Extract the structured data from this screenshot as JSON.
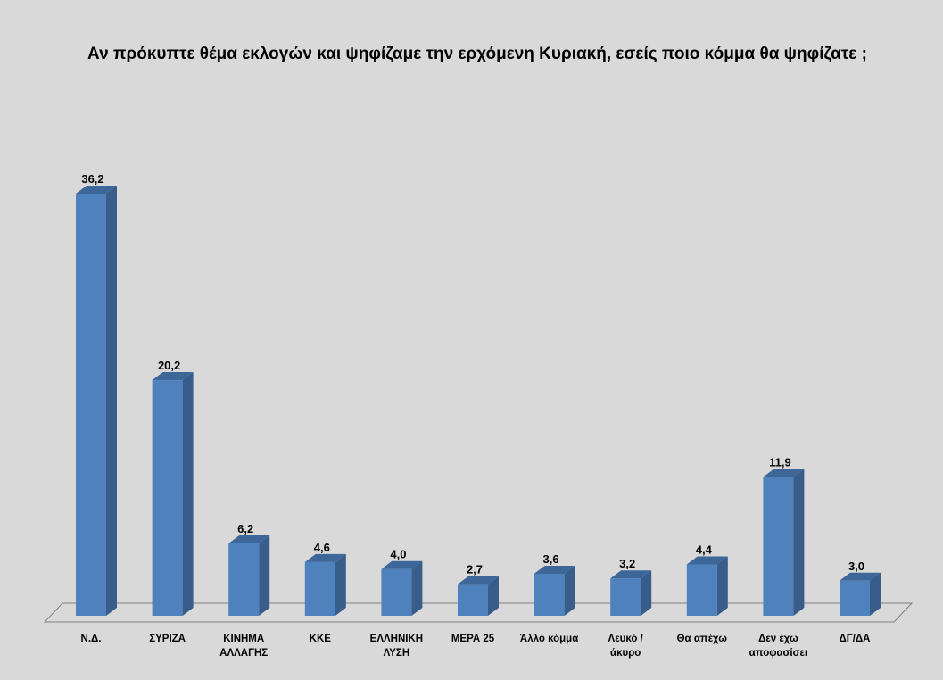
{
  "colors": {
    "background": "#d9d9d9",
    "bar_front": "#4f81bd",
    "bar_side": "#385d8a",
    "bar_top": "#3d6699",
    "floor_line": "#7f7f7f"
  },
  "chart_data": {
    "type": "bar",
    "title": "Αν πρόκυπτε θέμα εκλογών και ψηφίζαμε την ερχόμενη Κυριακή, εσείς ποιο κόμμα θα ψηφίζατε ;",
    "xlabel": "",
    "ylabel": "",
    "style": "3d-column",
    "grid": false,
    "legend": "none",
    "categories": [
      "Ν.Δ.",
      "ΣΥΡΙΖΑ",
      "ΚΙΝΗΜΑ ΑΛΛΑΓΗΣ",
      "ΚΚΕ",
      "ΕΛΛΗΝΙΚΗ ΛΥΣΗ",
      "ΜΕΡΑ 25",
      "Άλλο κόμμα",
      "Λευκό / άκυρο",
      "Θα απέχω",
      "Δεν έχω αποφασίσει",
      "ΔΓ/ΔΑ"
    ],
    "category_display": [
      "Ν.Δ.",
      "ΣΥΡΙΖΑ",
      "ΚΙΝΗΜΑ\nΑΛΛΑΓΗΣ",
      "ΚΚΕ",
      "ΕΛΛΗΝΙΚΗ\nΛΥΣΗ",
      "ΜΕΡΑ 25",
      "Άλλο κόμμα",
      "Λευκό /\nάκυρο",
      "Θα απέχω",
      "Δεν έχω\nαποφασίσει",
      "ΔΓ/ΔΑ"
    ],
    "values": [
      36.2,
      20.2,
      6.2,
      4.6,
      4.0,
      2.7,
      3.6,
      3.2,
      4.4,
      11.9,
      3.0
    ],
    "data_labels": [
      "36,2",
      "20,2",
      "6,2",
      "4,6",
      "4,0",
      "2,7",
      "3,6",
      "3,2",
      "4,4",
      "11,9",
      "3,0"
    ],
    "ylim": [
      0,
      36.2
    ]
  }
}
